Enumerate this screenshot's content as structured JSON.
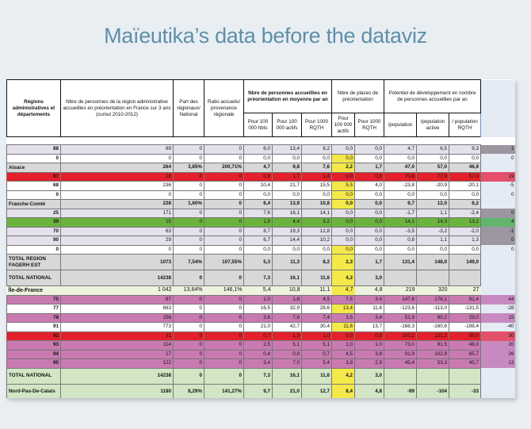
{
  "slide": {
    "title": "Maïeutika’s data before the dataviz"
  },
  "table": {
    "headers": {
      "region": "Régions administratives et départements",
      "nbre_total": "Nbre de personnes de la région administrative accueillies en préorientation en France sur 3 ans (cumul 2010-2012)",
      "part": "Part des régionaux/ National",
      "ratio": "Ratio accueils/ provenance régionale",
      "group_moyenne": "Nbre de personnes accueillies en préorientation en moyenne par an",
      "group_places": "Nbre de places de préorientation",
      "group_potentiel": "Potentiel de développement en nombre de personnes accueillies par an",
      "sub": [
        "Pour 100 000 hbts",
        "Pour 100 000 actifs",
        "Pour 1000 RQTH",
        "Pour 100 000 actifs",
        "Pour 1000 RQTH",
        "/population",
        "/population active",
        "/ population RQTH"
      ]
    },
    "rows": [
      {
        "style": "lav",
        "extra": "grey",
        "yellow": false,
        "cells": [
          "88",
          "69",
          "0",
          "0",
          "6,0",
          "13,4",
          "8,2",
          "0,0",
          "0,0",
          "4,7",
          "6,5",
          "9,3",
          "1"
        ]
      },
      {
        "style": "white",
        "extra": "blue",
        "yellow": true,
        "cells": [
          "0",
          "0",
          "0",
          "0",
          "0,0",
          "0,0",
          "0,0",
          "0,0",
          "0,0",
          "0,0",
          "0,0",
          "0,0",
          "0"
        ]
      },
      {
        "style": "grey",
        "extra": "blue",
        "yellow": true,
        "cells": [
          "Alsace",
          "264",
          "3,85%",
          "200,71%",
          "4,7",
          "9,8",
          "7,6",
          "2,2",
          "1,7",
          "47,0",
          "57,0",
          "46,9",
          ""
        ]
      },
      {
        "style": "red",
        "extra": "red",
        "yellow": false,
        "cells": [
          "67",
          "28",
          "0",
          "0",
          "0,8",
          "1,7",
          "1,4",
          "0,0",
          "0,0",
          "70,8",
          "77,9",
          "57,0",
          "19"
        ]
      },
      {
        "style": "white",
        "extra": "blue",
        "yellow": true,
        "cells": [
          "68",
          "236",
          "0",
          "0",
          "10,4",
          "21,7",
          "15,5",
          "5,5",
          "4,0",
          "-23,8",
          "-20,9",
          "-20,1",
          "-5"
        ]
      },
      {
        "style": "white",
        "extra": "blue",
        "yellow": true,
        "cells": [
          "0",
          "0",
          "0",
          "0",
          "0,0",
          "0,0",
          "0,0",
          "0,0",
          "0,0",
          "0,0",
          "0,0",
          "0,0",
          "0"
        ]
      },
      {
        "style": "grey",
        "extra": "blue",
        "yellow": true,
        "cells": [
          "Franche-Comté",
          "228",
          "1,60%",
          "0",
          "6,4",
          "13,9",
          "10,8",
          "0,0",
          "0,0",
          "9,7",
          "12,0",
          "6,2",
          ""
        ]
      },
      {
        "style": "lav",
        "extra": "grey",
        "yellow": false,
        "cells": [
          "25",
          "171",
          "0",
          "0",
          "7,6",
          "16,1",
          "14,1",
          "0,0",
          "0,0",
          "-1,7",
          "1,1",
          "-2,4",
          "0"
        ]
      },
      {
        "style": "green",
        "extra": "green",
        "yellow": false,
        "cells": [
          "39",
          "15",
          "0",
          "0",
          "1,9",
          "4,4",
          "3,2",
          "0,0",
          "0,0",
          "14,1",
          "14,3",
          "13,2",
          "4"
        ]
      },
      {
        "style": "lav",
        "extra": "grey",
        "yellow": false,
        "cells": [
          "70",
          "63",
          "0",
          "0",
          "8,7",
          "19,3",
          "12,8",
          "0,0",
          "0,0",
          "-3,5",
          "-3,2",
          "-2,0",
          "-1"
        ]
      },
      {
        "style": "lav",
        "extra": "grey",
        "yellow": false,
        "cells": [
          "90",
          "29",
          "0",
          "0",
          "6,7",
          "14,4",
          "10,2",
          "0,0",
          "0,0",
          "0,8",
          "1,1",
          "1,3",
          "0"
        ]
      },
      {
        "style": "white",
        "extra": "blue",
        "yellow": true,
        "cells": [
          "0",
          "0",
          "0",
          "0",
          "0,0",
          "0,0",
          "0,0",
          "0,0",
          "0,0",
          "0,0",
          "0,0",
          "0,0",
          "0"
        ]
      },
      {
        "style": "grey tall",
        "extra": "blue",
        "yellow": true,
        "cells": [
          "TOTAL REGION FAGERH EST",
          "1073",
          "7,54%",
          "107,55%",
          "5,3",
          "11,3",
          "8,2",
          "2,3",
          "1,7",
          "131,4",
          "148,0",
          "149,0",
          ""
        ]
      },
      {
        "style": "grey tall",
        "extra": "blue",
        "yellow": true,
        "cells": [
          "TOTAL NATIONAL",
          "14238",
          "0",
          "0",
          "7,3",
          "16,1",
          "11,6",
          "4,2",
          "3,0",
          "",
          "",
          "",
          ""
        ]
      },
      {
        "style": "idf",
        "extra": "blue",
        "yellow": true,
        "cells": [
          "Île-de-France",
          "1 042",
          "13,64%",
          "146,1%",
          "5,4",
          "10,8",
          "11,1",
          "4,7",
          "4,8",
          "219",
          "320",
          "27",
          ""
        ]
      },
      {
        "style": "pink",
        "extra": "pink",
        "yellow": false,
        "cells": [
          "75",
          "67",
          "0",
          "0",
          "1,0",
          "1,8",
          "4,5",
          "7,5",
          "3,4",
          "147,6",
          "176,1",
          "81,4",
          "44"
        ]
      },
      {
        "style": "white",
        "extra": "blue",
        "yellow": true,
        "cells": [
          "77",
          "663",
          "0",
          "0",
          "16,5",
          "32,9",
          "28,6",
          "13,4",
          "11,6",
          "-123,6",
          "-113,0",
          "-131,5",
          "-28"
        ]
      },
      {
        "style": "pink",
        "extra": "pink",
        "yellow": false,
        "cells": [
          "78",
          "156",
          "0",
          "0",
          "3,6",
          "7,6",
          "7,4",
          "3,5",
          "3,4",
          "51,9",
          "60,2",
          "29,0",
          "15"
        ]
      },
      {
        "style": "white",
        "extra": "blue",
        "yellow": true,
        "cells": [
          "91",
          "773",
          "0",
          "0",
          "21,0",
          "42,7",
          "30,4",
          "11,6",
          "13,7",
          "-168,3",
          "-160,6",
          "-198,4",
          "-40"
        ]
      },
      {
        "style": "red",
        "extra": "red",
        "yellow": false,
        "cells": [
          "92",
          "31",
          "0",
          "0",
          "0,7",
          "1,3",
          "1,0",
          "0,0",
          "0,0",
          "105,2",
          "121,2",
          "55,0",
          "30"
        ]
      },
      {
        "style": "pink",
        "extra": "pink",
        "yellow": false,
        "cells": [
          "93",
          "114",
          "0",
          "0",
          "2,5",
          "5,1",
          "5,1",
          "1,0",
          "1,0",
          "73,0",
          "81,5",
          "48,0",
          "20"
        ]
      },
      {
        "style": "pink",
        "extra": "pink",
        "yellow": false,
        "cells": [
          "94",
          "17",
          "0",
          "0",
          "0,4",
          "0,8",
          "0,7",
          "4,5",
          "3,8",
          "91,9",
          "102,8",
          "65,7",
          "26"
        ]
      },
      {
        "style": "pink",
        "extra": "pink",
        "yellow": false,
        "cells": [
          "95",
          "122",
          "0",
          "0",
          "3,4",
          "7,0",
          "5,4",
          "3,8",
          "2,9",
          "45,4",
          "53,3",
          "45,7",
          "13"
        ]
      },
      {
        "style": "pgreen tall",
        "extra": "blue",
        "yellow": true,
        "cells": [
          "TOTAL NATIONAL",
          "14238",
          "0",
          "0",
          "7,3",
          "16,1",
          "11,6",
          "4,2",
          "3,0",
          "",
          "",
          "",
          ""
        ]
      },
      {
        "style": "pgreen tall",
        "extra": "blue",
        "yellow": true,
        "cells": [
          "Nord-Pas-De-Calais",
          "1180",
          "8,29%",
          "141,27%",
          "9,7",
          "21,0",
          "12,7",
          "8,4",
          "4,8",
          "-99",
          "-104",
          "-33",
          ""
        ]
      }
    ]
  }
}
